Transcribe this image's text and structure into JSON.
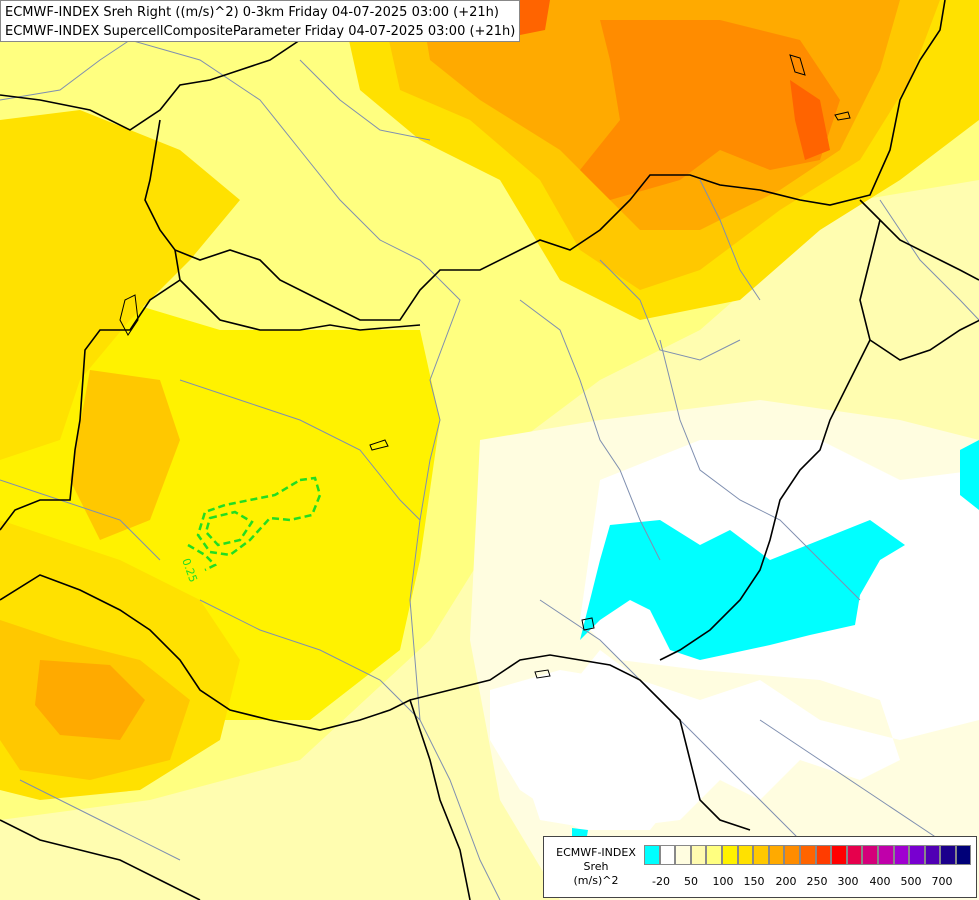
{
  "header": {
    "line1": "ECMWF-INDEX Sreh Right ((m/s)^2) 0-3km Friday 04-07-2025 03:00 (+21h)",
    "line2": "ECMWF-INDEX SupercellCompositeParameter Friday 04-07-2025 03:00 (+21h)"
  },
  "contour_label": "0.25",
  "legend": {
    "title_lines": [
      "ECMWF-INDEX",
      "Sreh",
      "(m/s)^2"
    ],
    "colors": [
      "#00ffff",
      "#ffffff",
      "#fffde0",
      "#fffbb0",
      "#ffff80",
      "#fff200",
      "#ffe100",
      "#ffc800",
      "#ffaa00",
      "#ff8c00",
      "#ff6400",
      "#ff3c00",
      "#ff0000",
      "#e6004c",
      "#d4007a",
      "#c000aa",
      "#a000d0",
      "#7800d0",
      "#5000b4",
      "#1c008c",
      "#000078"
    ],
    "tick_labels": [
      "-20",
      "50",
      "100",
      "150",
      "200",
      "250",
      "300",
      "400",
      "500",
      "700"
    ]
  }
}
